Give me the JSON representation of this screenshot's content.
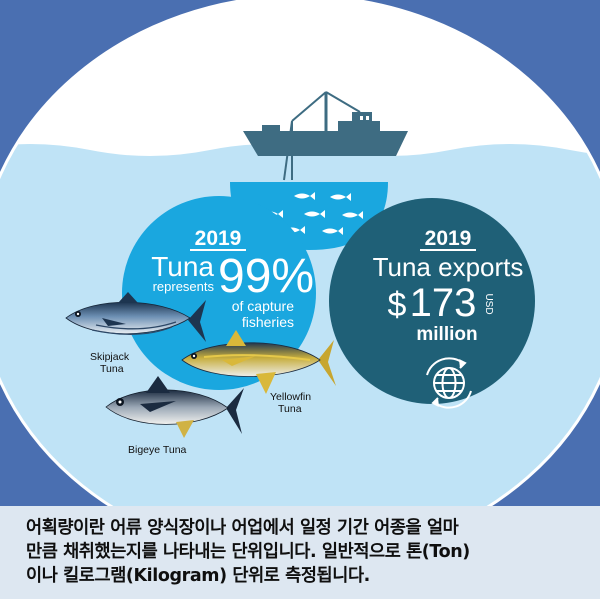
{
  "colors": {
    "frame_blue": "#4a6fb1",
    "sea_light": "#bfe3f6",
    "cyan_circle": "#1aa7df",
    "teal_circle": "#1f6077",
    "boat": "#3e6c82",
    "caption_bg": "#dde7f1"
  },
  "capture": {
    "year": "2019",
    "title": "Tuna",
    "represents": "represents",
    "percent": "99%",
    "line1": "of capture",
    "line2": "fisheries"
  },
  "exports": {
    "year": "2019",
    "title": "Tuna exports",
    "currency": "$",
    "value": "173",
    "unit": "USD",
    "scale": "million",
    "icon": "globe-exchange-icon"
  },
  "fish": {
    "skipjack": {
      "line1": "Skipjack",
      "line2": "Tuna"
    },
    "yellowfin": {
      "line1": "Yellowfin",
      "line2": "Tuna"
    },
    "bigeye": {
      "line1": "Bigeye Tuna"
    }
  },
  "caption": {
    "line1": "어획량이란 어류 양식장이나 어업에서 일정 기간 어종을 얼마",
    "line2": "만큼 채취했는지를 나타내는 단위입니다. 일반적으로 톤(Ton)",
    "line3": "이나 킬로그램(Kilogram) 단위로 측정됩니다."
  }
}
